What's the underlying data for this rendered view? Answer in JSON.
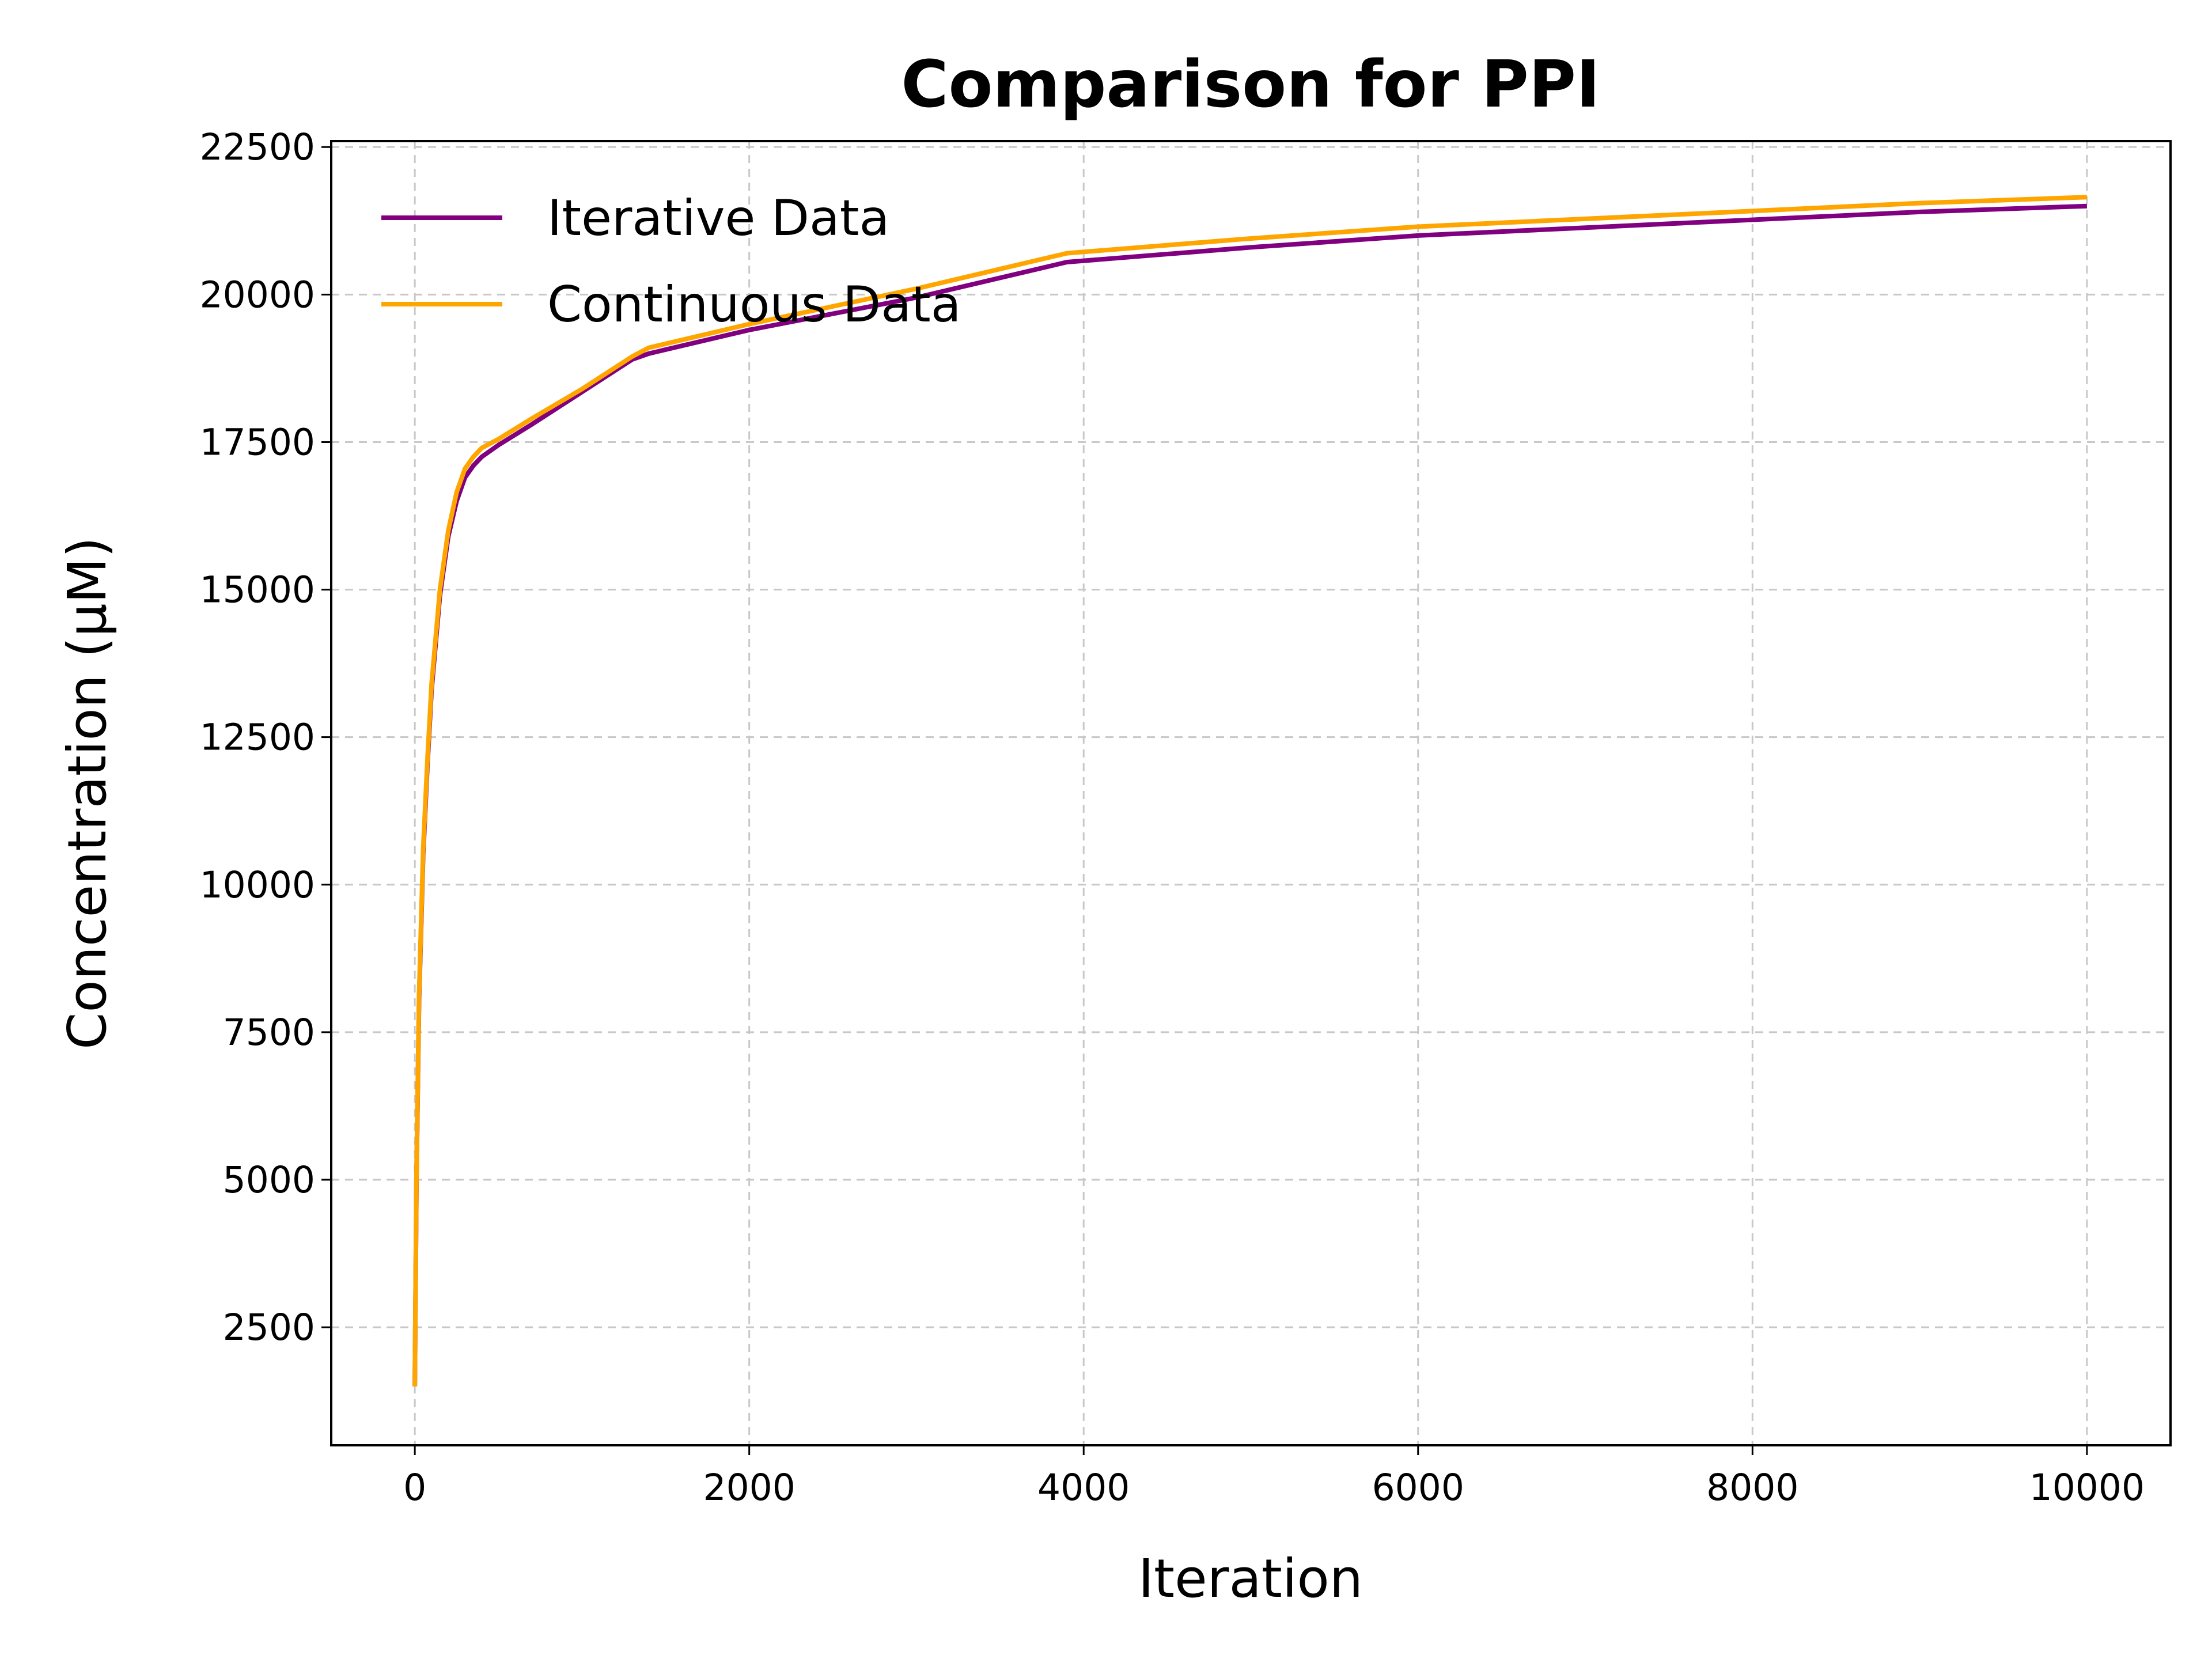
{
  "chart_data": {
    "type": "line",
    "title": "Comparison for PPI",
    "xlabel": "Iteration",
    "ylabel": "Concentration (μM)",
    "xlim": [
      -500,
      10500
    ],
    "ylim": [
      500,
      22600
    ],
    "xticks": [
      0,
      2000,
      4000,
      6000,
      8000,
      10000
    ],
    "yticks": [
      2500,
      5000,
      7500,
      10000,
      12500,
      15000,
      17500,
      20000,
      22500
    ],
    "grid": true,
    "legend": "top-left",
    "series": [
      {
        "name": "Iterative Data",
        "color": "#800080",
        "x": [
          0,
          10,
          25,
          50,
          75,
          100,
          150,
          200,
          250,
          300,
          350,
          400,
          500,
          700,
          1000,
          1300,
          1400,
          2000,
          3000,
          3900,
          5000,
          6000,
          7500,
          9000,
          10000
        ],
        "y": [
          1500,
          5000,
          8000,
          10500,
          12000,
          13300,
          14900,
          15900,
          16500,
          16900,
          17100,
          17250,
          17450,
          17800,
          18350,
          18900,
          19000,
          19400,
          19950,
          20550,
          20800,
          21000,
          21200,
          21400,
          21500
        ]
      },
      {
        "name": "Continuous Data",
        "color": "#ffa500",
        "x": [
          0,
          10,
          25,
          50,
          75,
          100,
          150,
          200,
          250,
          300,
          350,
          400,
          500,
          700,
          1000,
          1300,
          1400,
          2000,
          3000,
          3900,
          5000,
          6000,
          7500,
          9000,
          10000
        ],
        "y": [
          1500,
          5100,
          8100,
          10600,
          12100,
          13400,
          15000,
          16000,
          16650,
          17050,
          17250,
          17400,
          17550,
          17900,
          18400,
          18950,
          19100,
          19500,
          20100,
          20700,
          20950,
          21150,
          21350,
          21550,
          21650
        ]
      }
    ]
  }
}
